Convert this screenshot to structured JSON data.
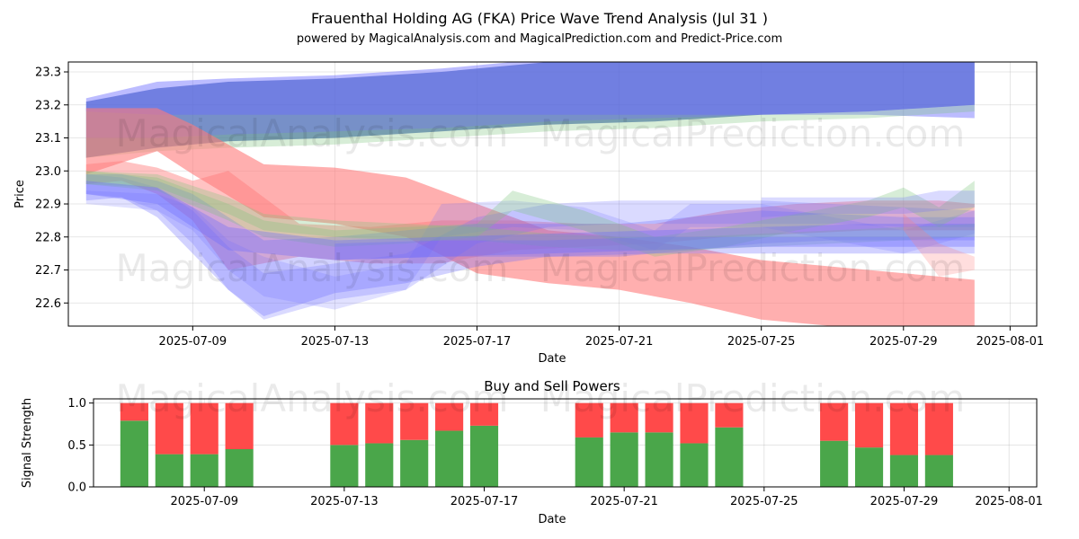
{
  "title": "Frauenthal Holding AG (FKA) Price Wave Trend Analysis (Jul 31 )",
  "subtitle": "powered by MagicalAnalysis.com and MagicalPrediction.com and Predict-Price.com",
  "watermarks": [
    "MagicalAnalysis.com",
    "MagicalPrediction.com"
  ],
  "chart_data": [
    {
      "type": "area",
      "xlabel": "Date",
      "ylabel": "Price",
      "x_ticks": [
        "2025-07-09",
        "2025-07-13",
        "2025-07-17",
        "2025-07-21",
        "2025-07-25",
        "2025-07-29",
        "2025-08-01"
      ],
      "y_ticks": [
        22.6,
        22.7,
        22.8,
        22.9,
        23.0,
        23.1,
        23.2,
        23.3
      ],
      "xlim": [
        "2025-07-05T12:00",
        "2025-08-01T18:00"
      ],
      "ylim": [
        22.53,
        23.33
      ],
      "grid": true,
      "bands": [
        {
          "color": "#4a6bb5",
          "opacity": 0.75,
          "x": [
            "2025-07-06",
            "2025-07-08",
            "2025-07-10",
            "2025-07-13",
            "2025-07-16",
            "2025-07-19",
            "2025-07-22",
            "2025-07-25",
            "2025-07-28",
            "2025-07-31"
          ],
          "upper": [
            23.21,
            23.25,
            23.27,
            23.28,
            23.3,
            23.33,
            23.33,
            23.33,
            23.33,
            23.33
          ],
          "lower": [
            23.04,
            23.07,
            23.09,
            23.1,
            23.12,
            23.14,
            23.15,
            23.17,
            23.18,
            23.2
          ]
        },
        {
          "color": "#6a6aff",
          "opacity": 0.45,
          "x": [
            "2025-07-06",
            "2025-07-08",
            "2025-07-10",
            "2025-07-13",
            "2025-07-16",
            "2025-07-19",
            "2025-07-22",
            "2025-07-25",
            "2025-07-28",
            "2025-07-31"
          ],
          "upper": [
            23.22,
            23.27,
            23.28,
            23.29,
            23.31,
            23.34,
            23.34,
            23.34,
            23.34,
            23.34
          ],
          "lower": [
            23.18,
            23.17,
            23.17,
            23.17,
            23.17,
            23.17,
            23.17,
            23.17,
            23.17,
            23.16
          ]
        },
        {
          "color": "#7cc47c",
          "opacity": 0.3,
          "x": [
            "2025-07-06",
            "2025-07-08",
            "2025-07-10",
            "2025-07-13",
            "2025-07-16",
            "2025-07-19",
            "2025-07-22",
            "2025-07-25",
            "2025-07-28",
            "2025-07-31"
          ],
          "upper": [
            23.1,
            23.1,
            23.11,
            23.12,
            23.13,
            23.15,
            23.16,
            23.17,
            23.18,
            23.2
          ],
          "lower": [
            23.04,
            23.06,
            23.07,
            23.08,
            23.1,
            23.12,
            23.13,
            23.15,
            23.16,
            23.18
          ]
        },
        {
          "color": "#ff7a7a",
          "opacity": 0.6,
          "x": [
            "2025-07-06",
            "2025-07-08",
            "2025-07-09",
            "2025-07-11",
            "2025-07-13",
            "2025-07-15",
            "2025-07-17",
            "2025-07-19",
            "2025-07-21",
            "2025-07-23",
            "2025-07-25",
            "2025-07-28",
            "2025-07-31"
          ],
          "upper": [
            23.19,
            23.19,
            23.14,
            23.02,
            23.01,
            22.98,
            22.9,
            22.82,
            22.8,
            22.77,
            22.73,
            22.7,
            22.67
          ],
          "lower": [
            22.99,
            23.06,
            22.99,
            22.86,
            22.84,
            22.8,
            22.69,
            22.66,
            22.64,
            22.6,
            22.55,
            22.52,
            22.52
          ]
        },
        {
          "color": "#ff7a7a",
          "opacity": 0.45,
          "x": [
            "2025-07-06",
            "2025-07-07",
            "2025-07-08",
            "2025-07-09",
            "2025-07-10",
            "2025-07-12",
            "2025-07-14",
            "2025-07-16",
            "2025-07-18",
            "2025-07-20",
            "2025-07-22",
            "2025-07-24",
            "2025-07-26",
            "2025-07-28",
            "2025-07-30",
            "2025-07-31"
          ],
          "upper": [
            23.02,
            23.03,
            23.01,
            22.97,
            23.0,
            22.84,
            22.83,
            22.85,
            22.85,
            22.84,
            22.84,
            22.88,
            22.9,
            22.91,
            22.91,
            22.9
          ],
          "lower": [
            22.96,
            22.97,
            22.93,
            22.85,
            22.7,
            22.74,
            22.72,
            22.72,
            22.76,
            22.77,
            22.78,
            22.8,
            22.81,
            22.82,
            22.82,
            22.82
          ]
        },
        {
          "color": "#6a6aff",
          "opacity": 0.3,
          "x": [
            "2025-07-06",
            "2025-07-07",
            "2025-07-08",
            "2025-07-09",
            "2025-07-10",
            "2025-07-11",
            "2025-07-13",
            "2025-07-15",
            "2025-07-17",
            "2025-07-19",
            "2025-07-21",
            "2025-07-23",
            "2025-07-25",
            "2025-07-27",
            "2025-07-29",
            "2025-07-31"
          ],
          "upper": [
            22.99,
            22.99,
            22.97,
            22.93,
            22.86,
            22.79,
            22.8,
            22.82,
            22.84,
            22.84,
            22.84,
            22.86,
            22.88,
            22.87,
            22.86,
            22.86
          ],
          "lower": [
            22.91,
            22.92,
            22.86,
            22.75,
            22.64,
            22.56,
            22.63,
            22.66,
            22.71,
            22.74,
            22.74,
            22.76,
            22.78,
            22.79,
            22.79,
            22.79
          ]
        },
        {
          "color": "#6a6aff",
          "opacity": 0.25,
          "x": [
            "2025-07-06",
            "2025-07-07",
            "2025-07-08",
            "2025-07-09",
            "2025-07-10",
            "2025-07-11",
            "2025-07-13",
            "2025-07-15",
            "2025-07-17",
            "2025-07-19",
            "2025-07-21",
            "2025-07-23",
            "2025-07-25",
            "2025-07-27",
            "2025-07-29",
            "2025-07-31"
          ],
          "upper": [
            22.99,
            22.98,
            22.95,
            22.88,
            22.77,
            22.69,
            22.72,
            22.75,
            22.86,
            22.9,
            22.91,
            22.91,
            22.91,
            22.9,
            22.89,
            22.88
          ],
          "lower": [
            22.93,
            22.92,
            22.88,
            22.78,
            22.64,
            22.55,
            22.61,
            22.64,
            22.78,
            22.83,
            22.84,
            22.84,
            22.84,
            22.84,
            22.83,
            22.83
          ]
        },
        {
          "color": "#6a6aff",
          "opacity": 0.2,
          "x": [
            "2025-07-06",
            "2025-07-08",
            "2025-07-09",
            "2025-07-10",
            "2025-07-11",
            "2025-07-13",
            "2025-07-15",
            "2025-07-16",
            "2025-07-18",
            "2025-07-20",
            "2025-07-22",
            "2025-07-23",
            "2025-07-25",
            "2025-07-27",
            "2025-07-29",
            "2025-07-31"
          ],
          "upper": [
            22.94,
            22.93,
            22.89,
            22.79,
            22.74,
            22.68,
            22.72,
            22.9,
            22.91,
            22.89,
            22.82,
            22.9,
            22.9,
            22.86,
            22.82,
            22.88
          ],
          "lower": [
            22.9,
            22.88,
            22.82,
            22.7,
            22.62,
            22.58,
            22.64,
            22.8,
            22.83,
            22.82,
            22.76,
            22.83,
            22.83,
            22.79,
            22.75,
            22.81
          ]
        },
        {
          "color": "#7cc47c",
          "opacity": 0.3,
          "x": [
            "2025-07-06",
            "2025-07-08",
            "2025-07-10",
            "2025-07-11",
            "2025-07-13",
            "2025-07-15",
            "2025-07-17",
            "2025-07-18",
            "2025-07-20",
            "2025-07-22",
            "2025-07-24",
            "2025-07-26",
            "2025-07-28",
            "2025-07-29",
            "2025-07-30",
            "2025-07-31"
          ],
          "upper": [
            23.0,
            22.98,
            22.9,
            22.85,
            22.82,
            22.83,
            22.84,
            22.94,
            22.88,
            22.8,
            22.83,
            22.87,
            22.91,
            22.95,
            22.89,
            22.97
          ],
          "lower": [
            22.96,
            22.94,
            22.85,
            22.8,
            22.77,
            22.78,
            22.8,
            22.88,
            22.82,
            22.74,
            22.77,
            22.82,
            22.86,
            22.89,
            22.83,
            22.89
          ]
        },
        {
          "color": "#7cc47c",
          "opacity": 0.3,
          "x": [
            "2025-07-06",
            "2025-07-08",
            "2025-07-10",
            "2025-07-11",
            "2025-07-13",
            "2025-07-15",
            "2025-07-17",
            "2025-07-19",
            "2025-07-21",
            "2025-07-23",
            "2025-07-25",
            "2025-07-27",
            "2025-07-29",
            "2025-07-31"
          ],
          "upper": [
            23.0,
            22.99,
            22.92,
            22.87,
            22.85,
            22.84,
            22.83,
            22.81,
            22.8,
            22.8,
            22.81,
            22.82,
            22.83,
            22.84
          ],
          "lower": [
            22.96,
            22.95,
            22.87,
            22.82,
            22.8,
            22.79,
            22.79,
            22.77,
            22.76,
            22.76,
            22.77,
            22.78,
            22.79,
            22.8
          ]
        },
        {
          "color": "#6a6aff",
          "opacity": 0.35,
          "x": [
            "2025-07-06",
            "2025-07-08",
            "2025-07-10",
            "2025-07-13",
            "2025-07-16",
            "2025-07-19",
            "2025-07-22",
            "2025-07-25",
            "2025-07-28",
            "2025-07-31"
          ],
          "upper": [
            22.97,
            22.95,
            22.83,
            22.79,
            22.8,
            22.81,
            22.82,
            22.83,
            22.84,
            22.84
          ],
          "lower": [
            22.93,
            22.9,
            22.76,
            22.73,
            22.74,
            22.75,
            22.76,
            22.77,
            22.77,
            22.77
          ]
        },
        {
          "color": "#6a6aff",
          "opacity": 0.3,
          "x": [
            "2025-07-13",
            "2025-07-16",
            "2025-07-19",
            "2025-07-22",
            "2025-07-25",
            "2025-07-28",
            "2025-07-31"
          ],
          "upper": [
            22.78,
            22.79,
            22.79,
            22.8,
            22.8,
            22.8,
            22.8
          ],
          "lower": [
            22.73,
            22.74,
            22.74,
            22.75,
            22.75,
            22.75,
            22.75
          ]
        },
        {
          "color": "#6a6aff",
          "opacity": 0.25,
          "x": [
            "2025-07-25",
            "2025-07-27",
            "2025-07-29",
            "2025-07-30",
            "2025-07-31"
          ],
          "upper": [
            22.92,
            22.92,
            22.92,
            22.94,
            22.94
          ],
          "lower": [
            22.86,
            22.87,
            22.87,
            22.88,
            22.89
          ]
        },
        {
          "color": "#ff7a7a",
          "opacity": 0.25,
          "x": [
            "2025-07-29",
            "2025-07-30",
            "2025-07-31"
          ],
          "upper": [
            22.87,
            22.78,
            22.74
          ],
          "lower": [
            22.82,
            22.68,
            22.7
          ]
        }
      ]
    },
    {
      "type": "bar",
      "title": "Buy and Sell Powers",
      "xlabel": "Date",
      "ylabel": "Signal Strength",
      "x_ticks": [
        "2025-07-09",
        "2025-07-13",
        "2025-07-17",
        "2025-07-21",
        "2025-07-25",
        "2025-07-29",
        "2025-08-01"
      ],
      "y_ticks": [
        0.0,
        0.5,
        1.0
      ],
      "ylim": [
        0,
        1.05
      ],
      "stacked": true,
      "colors": {
        "buy": "#4aa64a",
        "sell": "#ff4a4a"
      },
      "categories": [
        "2025-07-07",
        "2025-07-08",
        "2025-07-09",
        "2025-07-10",
        "2025-07-13",
        "2025-07-14",
        "2025-07-15",
        "2025-07-16",
        "2025-07-17",
        "2025-07-20",
        "2025-07-21",
        "2025-07-22",
        "2025-07-23",
        "2025-07-24",
        "2025-07-27",
        "2025-07-28",
        "2025-07-29",
        "2025-07-30"
      ],
      "series": [
        {
          "values": [
            0.79,
            0.39,
            0.39,
            0.45,
            0.5,
            0.52,
            0.56,
            0.67,
            0.73,
            0.59,
            0.65,
            0.65,
            0.52,
            0.71,
            0.55,
            0.47,
            0.38,
            0.38
          ]
        },
        {
          "values": [
            0.21,
            0.61,
            0.61,
            0.55,
            0.5,
            0.48,
            0.44,
            0.33,
            0.27,
            0.41,
            0.35,
            0.35,
            0.48,
            0.29,
            0.45,
            0.53,
            0.62,
            0.62
          ]
        }
      ]
    }
  ]
}
